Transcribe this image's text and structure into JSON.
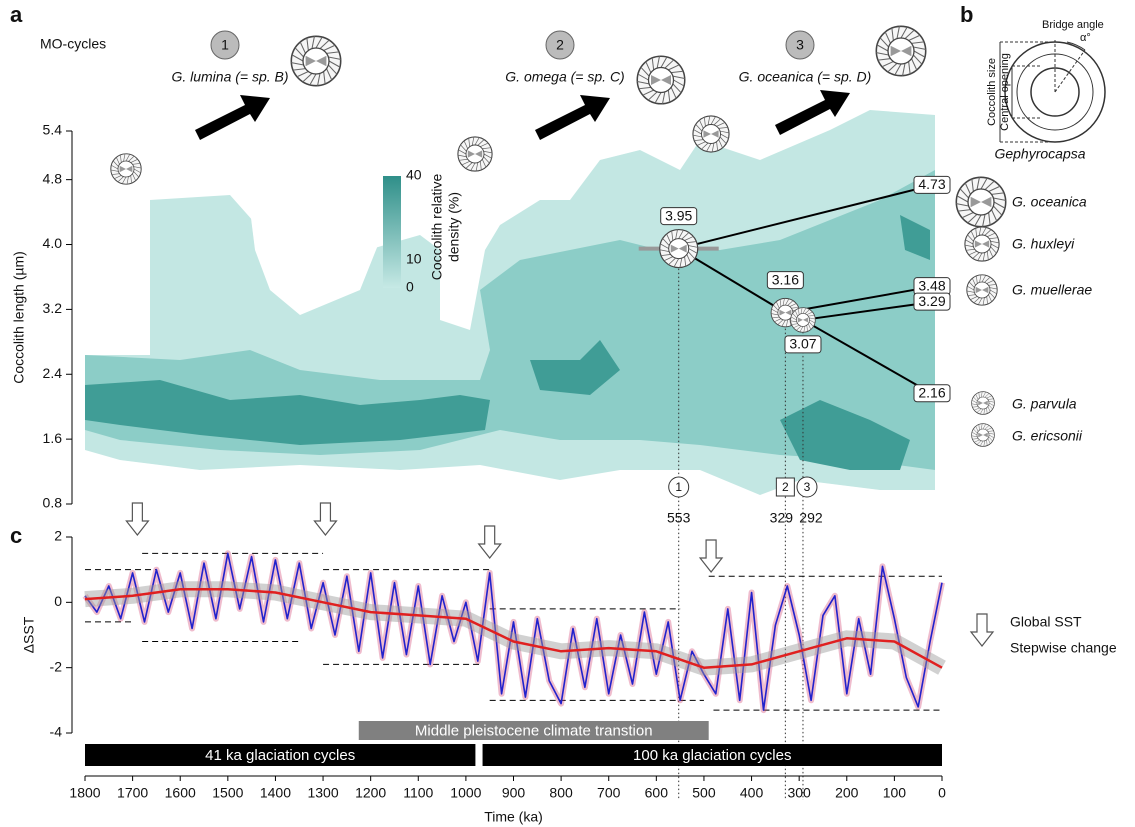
{
  "panel_labels": [
    "a",
    "b",
    "c"
  ],
  "mo_cycles": {
    "title": "MO-cycles",
    "items": [
      {
        "number": "1",
        "name": "G. lumina (= sp. B)"
      },
      {
        "number": "2",
        "name": "G. omega (= sp. C)"
      },
      {
        "number": "3",
        "name": "G. oceanica (= sp. D)"
      }
    ]
  },
  "panel_b": {
    "bridge_angle": "Bridge angle",
    "alpha": "α°",
    "coccolith_size": "Coccolith size",
    "central_opening": "Central opening",
    "genus": "Gephyrocapsa"
  },
  "species": [
    "G. oceanica",
    "G. huxleyi",
    "G. muellerae",
    "G. parvula",
    "G. ericsonii"
  ],
  "chart_data": [
    {
      "type": "contour",
      "y_label": "Coccolith length (µm)",
      "xlim": [
        1800,
        0
      ],
      "ylim": [
        0.8,
        5.4
      ],
      "yticks": [
        5.4,
        4.8,
        {
          "value": 4,
          "label": "4.0"
        },
        3.2,
        2.4,
        1.6,
        0.8
      ],
      "colorbar": {
        "label": [
          "Coccolith relative",
          "density (%)"
        ],
        "ticks": [
          40,
          10,
          0
        ],
        "colors": [
          "#2f8f89",
          "#c6e9e5"
        ]
      },
      "specimens": [
        {
          "marker": "1",
          "x": 553,
          "size": 3.95
        },
        {
          "marker": "2",
          "x": 329,
          "size": 3.16
        },
        {
          "marker": "3",
          "x": 292,
          "size": 3.07
        }
      ],
      "measurements": [
        4.73,
        3.48,
        3.29,
        2.16
      ]
    },
    {
      "type": "line",
      "y_label": "ΔSST",
      "x_label": "Time (ka)",
      "xlim": [
        1800,
        0
      ],
      "xticks": [
        1800,
        1700,
        1600,
        1500,
        1400,
        1300,
        1200,
        1100,
        1000,
        900,
        800,
        700,
        600,
        500,
        400,
        300,
        200,
        100,
        0
      ],
      "ylim": [
        -4,
        2
      ],
      "yticks": [
        2,
        0,
        -2,
        -4
      ],
      "series": [
        {
          "color": "#2222cc",
          "x": [
            1800,
            1775,
            1750,
            1725,
            1700,
            1675,
            1650,
            1625,
            1600,
            1575,
            1550,
            1525,
            1500,
            1475,
            1450,
            1425,
            1400,
            1375,
            1350,
            1325,
            1300,
            1275,
            1250,
            1225,
            1200,
            1175,
            1150,
            1125,
            1100,
            1075,
            1050,
            1025,
            1000,
            975,
            950,
            925,
            900,
            875,
            850,
            825,
            800,
            775,
            750,
            725,
            700,
            675,
            650,
            625,
            600,
            575,
            550,
            525,
            500,
            475,
            450,
            425,
            400,
            375,
            350,
            325,
            300,
            275,
            250,
            225,
            200,
            175,
            150,
            125,
            100,
            75,
            50,
            25,
            0
          ],
          "values": [
            0.2,
            -0.3,
            0.5,
            -0.5,
            0.9,
            -0.6,
            1.0,
            -0.3,
            0.9,
            -0.8,
            1.2,
            -0.5,
            1.5,
            -0.2,
            1.4,
            -0.6,
            1.3,
            -0.5,
            1.2,
            -0.8,
            0.6,
            -1.0,
            0.8,
            -1.5,
            0.9,
            -1.7,
            0.6,
            -1.6,
            0.5,
            -1.9,
            0.2,
            -1.2,
            0,
            -1.8,
            0.9,
            -2.8,
            -0.6,
            -2.9,
            -0.5,
            -2.4,
            -3.1,
            -0.8,
            -2.6,
            -0.5,
            -2.8,
            -1.0,
            -2.5,
            -0.3,
            -2.2,
            -0.6,
            -3.0,
            -1.5,
            -2.2,
            -2.8,
            -0.2,
            -3.0,
            0.3,
            -3.3,
            -0.7,
            0.5,
            -1.0,
            -3.0,
            -0.4,
            0.2,
            -2.8,
            -0.5,
            -2.2,
            1.1,
            -0.5,
            -2.3,
            -3.2,
            -1.2,
            0.6
          ]
        },
        {
          "color": "#e02020",
          "x": [
            1800,
            1700,
            1600,
            1500,
            1400,
            1300,
            1200,
            1100,
            1000,
            900,
            800,
            700,
            600,
            500,
            400,
            300,
            200,
            100,
            0
          ],
          "values": [
            0.1,
            0.2,
            0.4,
            0.4,
            0.3,
            0,
            -0.3,
            -0.4,
            -0.5,
            -1.2,
            -1.5,
            -1.4,
            -1.5,
            -2.0,
            -1.9,
            -1.5,
            -1.1,
            -1.2,
            -2.0
          ]
        }
      ],
      "step_levels": [
        {
          "value": 1.0,
          "from": 1800,
          "to": 1650
        },
        {
          "value": -0.6,
          "from": 1800,
          "to": 1700
        },
        {
          "value": 1.5,
          "from": 1680,
          "to": 1300
        },
        {
          "value": -1.2,
          "from": 1680,
          "to": 1350
        },
        {
          "value": 1.0,
          "from": 1300,
          "to": 950
        },
        {
          "value": -1.9,
          "from": 1300,
          "to": 970
        },
        {
          "value": -0.2,
          "from": 950,
          "to": 550
        },
        {
          "value": -3.0,
          "from": 950,
          "to": 500
        },
        {
          "value": 0.8,
          "from": 490,
          "to": 0
        },
        {
          "value": -3.3,
          "from": 480,
          "to": 0
        }
      ],
      "stepwise_changes": [
        1690,
        1295,
        950,
        485
      ],
      "legend": [
        "Global SST",
        "Stepwise change"
      ],
      "periods": [
        {
          "label": "Middle pleistocene climate transtion",
          "from": 1225,
          "to": 490,
          "color": "#808080"
        },
        {
          "label": "41 ka glaciation cycles",
          "from": 1800,
          "to": 980,
          "color": "#000000"
        },
        {
          "label": "100 ka glaciation cycles",
          "from": 965,
          "to": 0,
          "color": "#000000"
        }
      ]
    }
  ]
}
